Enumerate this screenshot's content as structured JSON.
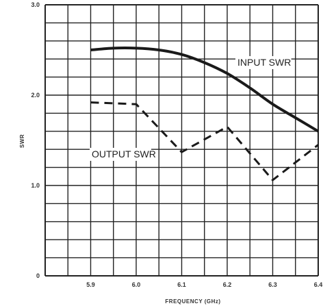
{
  "chart_data": {
    "type": "line",
    "title": "",
    "xlabel": "FREQUENCY (GHz)",
    "ylabel": "SWR",
    "xlim": [
      5.8,
      6.4
    ],
    "ylim": [
      0,
      3.0
    ],
    "grid": true,
    "x_ticks": [
      "5.9",
      "6.0",
      "6.1",
      "6.2",
      "6.3",
      "6.4"
    ],
    "y_ticks": [
      "0",
      "1.0",
      "2.0",
      "3.0"
    ],
    "series": [
      {
        "name": "INPUT SWR",
        "style": "solid",
        "color": "#1a1a1a",
        "x": [
          5.9,
          5.95,
          6.0,
          6.05,
          6.1,
          6.15,
          6.2,
          6.25,
          6.3,
          6.35,
          6.4
        ],
        "y": [
          2.5,
          2.52,
          2.52,
          2.5,
          2.45,
          2.36,
          2.24,
          2.08,
          1.9,
          1.75,
          1.6
        ]
      },
      {
        "name": "OUTPUT SWR",
        "style": "dashed",
        "color": "#1a1a1a",
        "x": [
          5.9,
          6.0,
          6.1,
          6.2,
          6.3,
          6.4
        ],
        "y": [
          1.92,
          1.9,
          1.37,
          1.65,
          1.06,
          1.45
        ]
      }
    ]
  }
}
